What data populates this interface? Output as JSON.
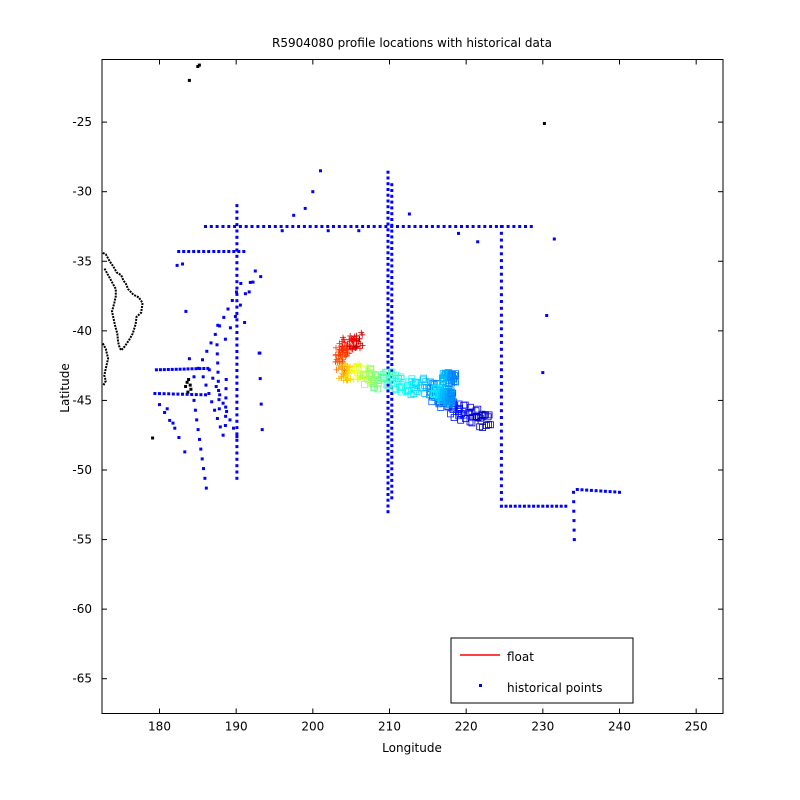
{
  "chart_data": {
    "type": "scatter",
    "title": "R5904080 profile locations with historical data",
    "xlabel": "Longitude",
    "ylabel": "Latitude",
    "xlim": [
      172.5,
      253.5
    ],
    "ylim": [
      -67.5,
      -20.5
    ],
    "xticks": [
      180,
      190,
      200,
      210,
      220,
      230,
      240,
      250
    ],
    "yticks": [
      -65,
      -60,
      -55,
      -50,
      -45,
      -40,
      -35,
      -30,
      -25
    ],
    "grid": false,
    "legend_position": "bottom-right",
    "legend": [
      {
        "label": "float",
        "color": "#ff0000",
        "marker": "line"
      },
      {
        "label": "historical points",
        "color": "#0000ff",
        "marker": "dot"
      }
    ],
    "series": [
      {
        "name": "historical points",
        "color": "#0000ff",
        "marker": "dot",
        "segments": [
          {
            "from": [
              186,
              -32.5
            ],
            "to": [
              228.5,
              -32.5
            ],
            "n": 57
          },
          {
            "from": [
              209.8,
              -28.6
            ],
            "to": [
              209.8,
              -53.0
            ],
            "n": 60
          },
          {
            "from": [
              210.3,
              -29.5
            ],
            "to": [
              210.3,
              -52.0
            ],
            "n": 55
          },
          {
            "from": [
              224.6,
              -32.5
            ],
            "to": [
              224.6,
              -52.6
            ],
            "n": 42
          },
          {
            "from": [
              225.2,
              -52.6
            ],
            "to": [
              233.0,
              -52.6
            ],
            "n": 14
          },
          {
            "from": [
              234.0,
              -51.6
            ],
            "to": [
              234.1,
              -55.0
            ],
            "n": 6
          },
          {
            "from": [
              234.5,
              -51.4
            ],
            "to": [
              240.0,
              -51.6
            ],
            "n": 10
          },
          {
            "from": [
              190.1,
              -31.0
            ],
            "to": [
              190.1,
              -50.6
            ],
            "n": 44
          },
          {
            "from": [
              182.5,
              -34.3
            ],
            "to": [
              191.0,
              -34.3
            ],
            "n": 14
          },
          {
            "from": [
              192.5,
              -35.7
            ],
            "to": [
              188.6,
              -40.6
            ],
            "n": 7
          },
          {
            "from": [
              190.6,
              -36.6
            ],
            "to": [
              184.5,
              -43.3
            ],
            "n": 12
          },
          {
            "from": [
              179.6,
              -42.8
            ],
            "to": [
              186.3,
              -42.7
            ],
            "n": 14
          },
          {
            "from": [
              185.7,
              -43.3
            ],
            "to": [
              188.3,
              -47.5
            ],
            "n": 8
          },
          {
            "from": [
              179.4,
              -44.5
            ],
            "to": [
              186.0,
              -44.6
            ],
            "n": 12
          },
          {
            "from": [
              184.5,
              -45.0
            ],
            "to": [
              186.1,
              -51.3
            ],
            "n": 10
          },
          {
            "from": [
              186.5,
              -42.8
            ],
            "to": [
              190.1,
              -47.6
            ],
            "n": 9
          },
          {
            "from": [
              188.7,
              -43.5
            ],
            "to": [
              188.6,
              -46.8
            ],
            "n": 6
          },
          {
            "from": [
              187.5,
              -41.0
            ],
            "to": [
              187.8,
              -45.6
            ],
            "n": 8
          },
          {
            "from": [
              193.0,
              -41.6
            ],
            "to": [
              193.4,
              -47.1
            ],
            "n": 4
          },
          {
            "from": [
              180.0,
              -45.3
            ],
            "to": [
              182.0,
              -47.0
            ],
            "n": 4
          },
          {
            "from": [
              181.0,
              -45.6
            ],
            "to": [
              183.3,
              -48.7
            ],
            "n": 4
          },
          {
            "from": [
              183.0,
              -35.2
            ],
            "to": [
              183.9,
              -42.0
            ],
            "n": 3
          }
        ],
        "points": [
          [
            201.0,
            -28.5
          ],
          [
            200.0,
            -30.0
          ],
          [
            199.0,
            -31.2
          ],
          [
            197.5,
            -31.7
          ],
          [
            212.6,
            -31.6
          ],
          [
            219.0,
            -33.0
          ],
          [
            221.5,
            -33.6
          ],
          [
            231.5,
            -33.4
          ],
          [
            230.5,
            -38.9
          ],
          [
            230.0,
            -43.0
          ],
          [
            182.3,
            -35.3
          ],
          [
            192.2,
            -36.5
          ],
          [
            193.2,
            -36.1
          ],
          [
            191.7,
            -37.2
          ],
          [
            196.0,
            -32.8
          ],
          [
            202.0,
            -32.8
          ],
          [
            206.0,
            -32.8
          ],
          [
            193.1,
            -41.6
          ],
          [
            187.6,
            -39.6
          ],
          [
            191.1,
            -39.4
          ]
        ]
      },
      {
        "name": "float",
        "type": "track",
        "colorscale": "jet",
        "track": [
          [
            222.5,
            -46.5
          ],
          [
            221.0,
            -46.0
          ],
          [
            219.5,
            -45.8
          ],
          [
            218.0,
            -45.2
          ],
          [
            216.5,
            -44.8
          ],
          [
            215.5,
            -44.3
          ],
          [
            214.5,
            -44.0
          ],
          [
            213.0,
            -44.0
          ],
          [
            211.5,
            -43.8
          ],
          [
            210.0,
            -43.5
          ],
          [
            208.5,
            -43.6
          ],
          [
            207.5,
            -43.3
          ],
          [
            206.5,
            -43.1
          ],
          [
            205.5,
            -42.9
          ],
          [
            204.5,
            -42.9
          ],
          [
            204.0,
            -43.0
          ],
          [
            203.6,
            -42.8
          ],
          [
            203.6,
            -42.2
          ],
          [
            203.8,
            -41.5
          ],
          [
            204.5,
            -41.0
          ],
          [
            205.5,
            -40.7
          ],
          [
            206.5,
            -40.6
          ]
        ],
        "extra_clusters": [
          {
            "center": [
              217.8,
              -43.4
            ],
            "spread": [
              0.9,
              0.4
            ]
          },
          {
            "center": [
              216.7,
              -44.5
            ],
            "spread": [
              1.1,
              0.5
            ]
          },
          {
            "center": [
              217.6,
              -44.8
            ],
            "spread": [
              0.7,
              0.5
            ]
          }
        ]
      },
      {
        "name": "coastline",
        "color": "#000000",
        "marker": "dot",
        "coast_west": [
          [
            172.6,
            -34.4
          ],
          [
            173.0,
            -34.5
          ],
          [
            173.5,
            -35.0
          ],
          [
            174.0,
            -35.4
          ],
          [
            174.4,
            -35.8
          ],
          [
            175.0,
            -36.0
          ],
          [
            175.3,
            -36.4
          ],
          [
            175.6,
            -36.6
          ],
          [
            175.9,
            -37.0
          ],
          [
            176.6,
            -37.4
          ],
          [
            177.3,
            -37.6
          ],
          [
            177.8,
            -38.0
          ],
          [
            177.6,
            -38.7
          ],
          [
            177.0,
            -39.0
          ],
          [
            176.9,
            -39.5
          ],
          [
            176.5,
            -40.2
          ],
          [
            176.1,
            -40.6
          ],
          [
            175.5,
            -41.1
          ],
          [
            175.0,
            -41.4
          ],
          [
            174.8,
            -41.2
          ],
          [
            174.6,
            -40.8
          ],
          [
            174.5,
            -40.2
          ],
          [
            174.2,
            -39.6
          ],
          [
            174.0,
            -39.1
          ],
          [
            173.8,
            -38.6
          ],
          [
            174.1,
            -38.0
          ],
          [
            174.3,
            -37.5
          ],
          [
            174.3,
            -37.0
          ],
          [
            173.8,
            -36.5
          ],
          [
            173.2,
            -35.9
          ],
          [
            172.8,
            -35.5
          ]
        ],
        "coast_south": [
          [
            172.6,
            -40.9
          ],
          [
            173.0,
            -41.3
          ],
          [
            173.3,
            -42.0
          ],
          [
            173.0,
            -42.7
          ],
          [
            172.8,
            -43.2
          ],
          [
            173.0,
            -43.6
          ],
          [
            172.7,
            -43.9
          ]
        ],
        "points": [
          [
            185.2,
            -20.9
          ],
          [
            185.0,
            -21.0
          ],
          [
            183.9,
            -22.0
          ],
          [
            230.2,
            -25.1
          ],
          [
            179.1,
            -47.7
          ],
          [
            183.6,
            -43.7
          ],
          [
            184.0,
            -43.9
          ],
          [
            183.4,
            -44.0
          ],
          [
            184.1,
            -44.2
          ],
          [
            183.8,
            -43.5
          ],
          [
            183.7,
            -44.4
          ]
        ]
      }
    ]
  }
}
